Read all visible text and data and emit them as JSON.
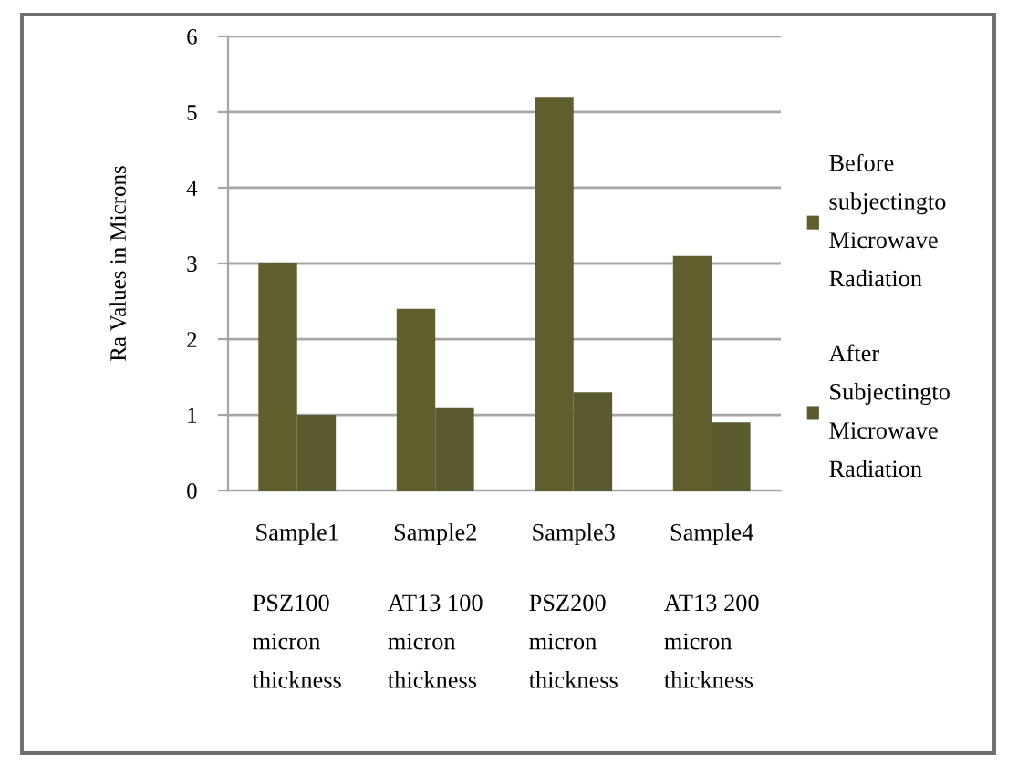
{
  "chart_data": {
    "type": "bar",
    "ylabel": "Ra Values in Microns",
    "categories": [
      "Sample1",
      "Sample2",
      "Sample3",
      "Sample4"
    ],
    "series": [
      {
        "name": "Before\nsubjectingto\nMicrowave\nRadiation",
        "color": "#5f5e2c",
        "values": [
          3.0,
          2.4,
          5.2,
          3.1
        ]
      },
      {
        "name": "After\nSubjectingto\nMicrowave\nRadiation",
        "color": "#5b5a2e",
        "values": [
          1.0,
          1.1,
          1.3,
          0.9
        ]
      }
    ],
    "ylim": [
      0,
      6
    ],
    "yticks": [
      0,
      1,
      2,
      3,
      4,
      5,
      6
    ],
    "grid": "y",
    "legend": "right",
    "annotations": [
      "PSZ100\nmicron\nthickness",
      "AT13 100\nmicron\nthickness",
      "PSZ200\nmicron\nthickness",
      "AT13 200\nmicron\nthickness"
    ]
  }
}
